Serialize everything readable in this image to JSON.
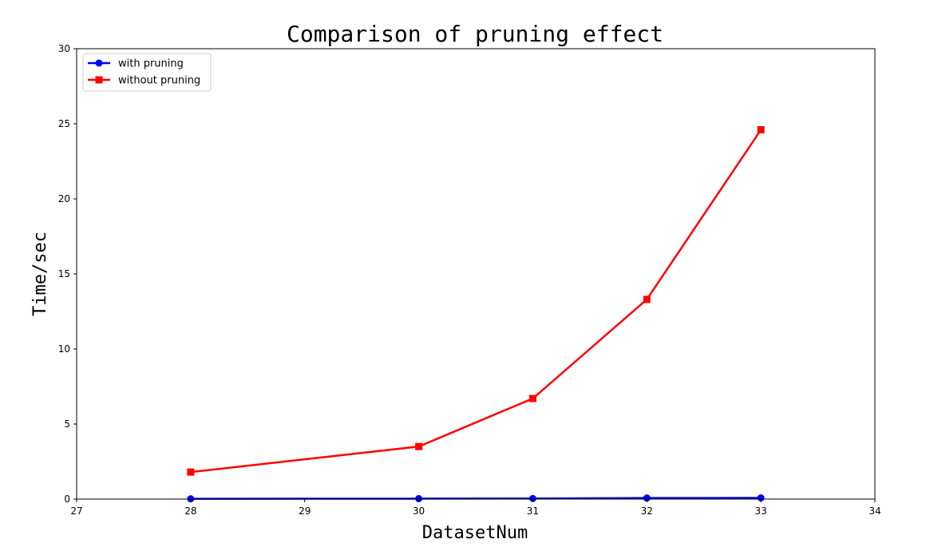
{
  "chart_data": {
    "type": "line",
    "title": "Comparison of pruning effect",
    "xlabel": "DatasetNum",
    "ylabel": "Time/sec",
    "xlim": [
      27,
      34
    ],
    "ylim": [
      0,
      30
    ],
    "xticks": [
      27,
      28,
      29,
      30,
      31,
      32,
      33,
      34
    ],
    "yticks": [
      0,
      5,
      10,
      15,
      20,
      25,
      30
    ],
    "grid": false,
    "legend_position": "top-left",
    "series": [
      {
        "name": "with pruning",
        "color": "#0000ff",
        "marker": "circle",
        "x": [
          28,
          30,
          31,
          32,
          33
        ],
        "y": [
          0.02,
          0.03,
          0.04,
          0.07,
          0.08
        ]
      },
      {
        "name": "without pruning",
        "color": "#ff0000",
        "marker": "square",
        "x": [
          28,
          30,
          31,
          32,
          33
        ],
        "y": [
          1.8,
          3.5,
          6.7,
          13.3,
          24.6
        ]
      }
    ]
  }
}
